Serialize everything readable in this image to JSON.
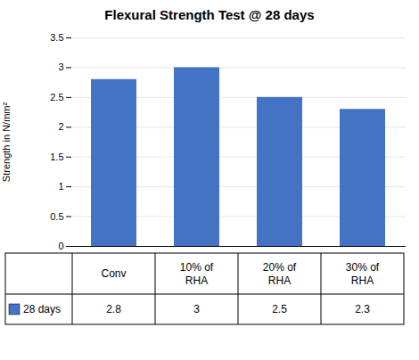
{
  "chart_data": {
    "type": "bar",
    "title": "Flexural Strength Test @ 28 days",
    "categories": [
      "Conv",
      "10% of\nRHA",
      "20% of\nRHA",
      "30% of\nRHA"
    ],
    "series": [
      {
        "name": "28 days",
        "color": "#4472C4",
        "values": [
          2.8,
          3.0,
          2.5,
          2.3
        ]
      }
    ],
    "ylabel": "Strength in N/mm²",
    "ylim": [
      0,
      3.5
    ],
    "yticks": [
      0,
      0.5,
      1.0,
      1.5,
      2.0,
      2.5,
      3.0,
      3.5
    ],
    "grid": true,
    "data_labels": true
  }
}
